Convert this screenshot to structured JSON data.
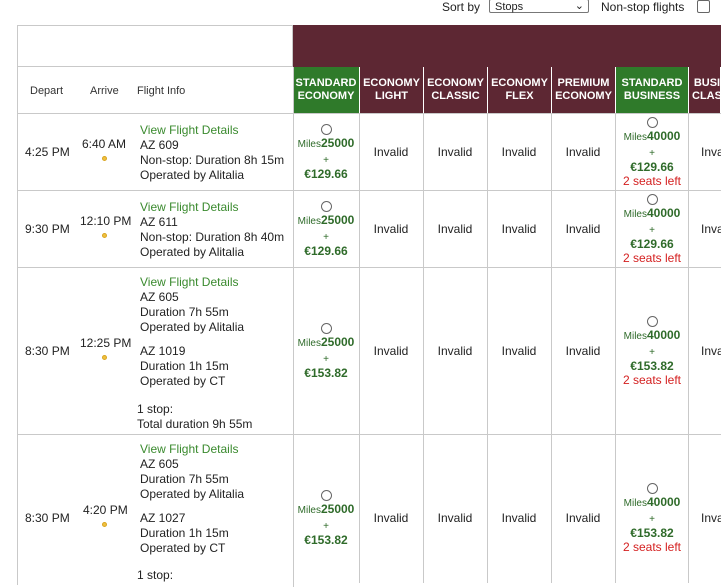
{
  "toolbar": {
    "sort_label": "Sort by",
    "sort_value": "Stops",
    "nonstop_label": "Non-stop flights"
  },
  "columns": {
    "depart": "Depart",
    "arrive": "Arrive",
    "info": "Flight Info"
  },
  "fare_headers": [
    {
      "line1": "STANDARD",
      "line2": "ECONOMY",
      "color": "#2f7a2a"
    },
    {
      "line1": "ECONOMY",
      "line2": "LIGHT",
      "color": "#5d2733"
    },
    {
      "line1": "ECONOMY",
      "line2": "CLASSIC",
      "color": "#5d2733"
    },
    {
      "line1": "ECONOMY",
      "line2": "FLEX",
      "color": "#5d2733"
    },
    {
      "line1": "PREMIUM",
      "line2": "ECONOMY",
      "color": "#5d2733"
    },
    {
      "line1": "STANDARD",
      "line2": "BUSINESS",
      "color": "#2f7a2a"
    },
    {
      "line1": "BUSI",
      "line2": "CLAS",
      "color": "#5d2733"
    }
  ],
  "rows": [
    {
      "depart": "4:25 PM",
      "arrive": "6:40 AM",
      "details": "View Flight Details",
      "lines": [
        "AZ 609",
        "Non-stop: Duration 8h 15m",
        "Operated by Alitalia"
      ],
      "std_eco": {
        "miles_label": "Miles",
        "miles": "25000",
        "plus": "+",
        "price": "€129.66"
      },
      "std_bus": {
        "miles_label": "Miles",
        "miles": "40000",
        "plus": "+",
        "price": "€129.66",
        "seats": "2 seats left"
      },
      "invalid": "Invalid",
      "last": "Inva"
    },
    {
      "depart": "9:30 PM",
      "arrive": "12:10 PM",
      "details": "View Flight Details",
      "lines": [
        "AZ 611",
        "Non-stop: Duration 8h 40m",
        "Operated by Alitalia"
      ],
      "std_eco": {
        "miles_label": "Miles",
        "miles": "25000",
        "plus": "+",
        "price": "€129.66"
      },
      "std_bus": {
        "miles_label": "Miles",
        "miles": "40000",
        "plus": "+",
        "price": "€129.66",
        "seats": "2 seats left"
      },
      "invalid": "Invalid",
      "last": "Inva"
    },
    {
      "depart": "8:30 PM",
      "arrive": "12:25 PM",
      "details": "View Flight Details",
      "seg1": [
        "AZ 605",
        "Duration 7h 55m",
        "Operated by Alitalia"
      ],
      "seg2": [
        "AZ 1019",
        "Duration 1h 15m",
        "Operated by CT"
      ],
      "stops": "1 stop:",
      "total": "Total duration 9h 55m",
      "std_eco": {
        "miles_label": "Miles",
        "miles": "25000",
        "plus": "+",
        "price": "€153.82"
      },
      "std_bus": {
        "miles_label": "Miles",
        "miles": "40000",
        "plus": "+",
        "price": "€153.82",
        "seats": "2 seats left"
      },
      "invalid": "Invalid",
      "last": "Inva"
    },
    {
      "depart": "8:30 PM",
      "arrive": "4:20 PM",
      "details": "View Flight Details",
      "seg1": [
        "AZ 605",
        "Duration 7h 55m",
        "Operated by Alitalia"
      ],
      "seg2": [
        "AZ 1027",
        "Duration 1h 15m",
        "Operated by CT"
      ],
      "stops": "1 stop:",
      "std_eco": {
        "miles_label": "Miles",
        "miles": "25000",
        "plus": "+",
        "price": "€153.82"
      },
      "std_bus": {
        "miles_label": "Miles",
        "miles": "40000",
        "plus": "+",
        "price": "€153.82",
        "seats": "2 seats left"
      },
      "invalid": "Invalid",
      "last": "Inva"
    }
  ]
}
